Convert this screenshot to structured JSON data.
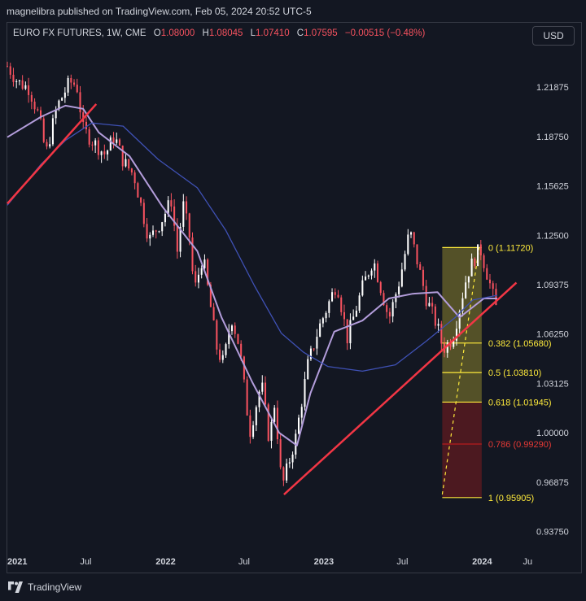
{
  "publish_line": "magnelibra published on TradingView.com, Feb 05, 2024 20:52 UTC-5",
  "legend": {
    "symbol": "EURO FX FUTURES, 1W, CME",
    "open_label": "O",
    "open": "1.08000",
    "high_label": "H",
    "high": "1.08045",
    "low_label": "L",
    "low": "1.07410",
    "close_label": "C",
    "close": "1.07595",
    "change": "−0.00515 (−0.48%)"
  },
  "currency_button": "USD",
  "footer": {
    "brand": "TradingView",
    "logo_icon": "tradingview-logo-icon"
  },
  "colors": {
    "background": "#131722",
    "up": "#ffffff",
    "down": "#f7525f",
    "trendline": "#f23645",
    "ma_fast": "#b39ddb",
    "ma_slow": "#3f51b5",
    "fib_yellow": "#ffeb3b",
    "fib_red": "#b71c1c",
    "axis_text": "#d1d4dc"
  },
  "chart_data": {
    "type": "candlestick",
    "instrument": "EURO FX FUTURES",
    "interval": "1W",
    "exchange": "CME",
    "y_axis": {
      "range": [
        0.925,
        1.245
      ],
      "ticks": [
        "1.21875",
        "1.18750",
        "1.15625",
        "1.12500",
        "1.09375",
        "1.06250",
        "1.03125",
        "1.00000",
        "0.96875",
        "0.93750"
      ]
    },
    "x_axis": {
      "range": [
        "2021-01-01",
        "2024-04-20"
      ],
      "ticks": [
        {
          "label": "2021",
          "date": "2021-01-01"
        },
        {
          "label": "Jul",
          "date": "2021-07-01"
        },
        {
          "label": "2022",
          "date": "2022-01-01"
        },
        {
          "label": "Jul",
          "date": "2022-07-01"
        },
        {
          "label": "2023",
          "date": "2023-01-01"
        },
        {
          "label": "Jul",
          "date": "2023-07-01"
        },
        {
          "label": "2024",
          "date": "2024-01-01"
        },
        {
          "label": "Ju",
          "date": "2024-04-15"
        }
      ]
    },
    "price_path": [
      [
        "2021-01-01",
        1.232
      ],
      [
        "2021-01-25",
        1.222
      ],
      [
        "2021-02-20",
        1.218
      ],
      [
        "2021-03-15",
        1.2
      ],
      [
        "2021-03-31",
        1.176
      ],
      [
        "2021-04-25",
        1.206
      ],
      [
        "2021-05-25",
        1.222
      ],
      [
        "2021-06-10",
        1.22
      ],
      [
        "2021-06-25",
        1.192
      ],
      [
        "2021-07-15",
        1.185
      ],
      [
        "2021-08-15",
        1.176
      ],
      [
        "2021-09-05",
        1.188
      ],
      [
        "2021-09-25",
        1.172
      ],
      [
        "2021-10-20",
        1.163
      ],
      [
        "2021-11-24",
        1.122
      ],
      [
        "2021-12-20",
        1.133
      ],
      [
        "2022-01-14",
        1.147
      ],
      [
        "2022-01-28",
        1.115
      ],
      [
        "2022-02-10",
        1.145
      ],
      [
        "2022-02-28",
        1.12
      ],
      [
        "2022-03-07",
        1.088
      ],
      [
        "2022-03-28",
        1.112
      ],
      [
        "2022-04-30",
        1.052
      ],
      [
        "2022-05-15",
        1.044
      ],
      [
        "2022-06-01",
        1.074
      ],
      [
        "2022-06-20",
        1.055
      ],
      [
        "2022-07-14",
        1.0
      ],
      [
        "2022-08-10",
        1.032
      ],
      [
        "2022-08-28",
        0.995
      ],
      [
        "2022-09-10",
        1.02
      ],
      [
        "2022-09-26",
        0.965
      ],
      [
        "2022-10-28",
        0.997
      ],
      [
        "2022-11-25",
        1.043
      ],
      [
        "2022-12-20",
        1.066
      ],
      [
        "2023-01-31",
        1.095
      ],
      [
        "2023-02-24",
        1.06
      ],
      [
        "2023-03-31",
        1.092
      ],
      [
        "2023-04-25",
        1.11
      ],
      [
        "2023-05-31",
        1.072
      ],
      [
        "2023-06-25",
        1.097
      ],
      [
        "2023-07-18",
        1.128
      ],
      [
        "2023-08-25",
        1.085
      ],
      [
        "2023-09-20",
        1.067
      ],
      [
        "2023-10-03",
        1.053
      ],
      [
        "2023-10-25",
        1.06
      ],
      [
        "2023-11-28",
        1.101
      ],
      [
        "2023-12-27",
        1.117
      ],
      [
        "2024-01-20",
        1.093
      ],
      [
        "2024-02-05",
        1.076
      ]
    ],
    "moving_averages": [
      {
        "points": [
          [
            "2021-01-01",
            1.187
          ],
          [
            "2021-03-20",
            1.2
          ],
          [
            "2021-05-15",
            1.207
          ],
          [
            "2021-06-25",
            1.205
          ],
          [
            "2021-07-31",
            1.19
          ],
          [
            "2021-10-10",
            1.175
          ],
          [
            "2021-12-25",
            1.143
          ],
          [
            "2022-03-15",
            1.115
          ],
          [
            "2022-05-10",
            1.073
          ],
          [
            "2022-07-20",
            1.032
          ],
          [
            "2022-09-20",
            1.0
          ],
          [
            "2022-10-31",
            0.992
          ],
          [
            "2022-12-01",
            1.025
          ],
          [
            "2023-01-25",
            1.064
          ],
          [
            "2023-03-31",
            1.071
          ],
          [
            "2023-05-31",
            1.085
          ],
          [
            "2023-07-25",
            1.088
          ],
          [
            "2023-09-20",
            1.089
          ],
          [
            "2023-11-10",
            1.073
          ],
          [
            "2024-01-05",
            1.085
          ],
          [
            "2024-02-05",
            1.085
          ]
        ]
      },
      {
        "points": [
          [
            "2021-01-01",
            1.144
          ],
          [
            "2021-03-20",
            1.17
          ],
          [
            "2021-05-15",
            1.185
          ],
          [
            "2021-07-15",
            1.196
          ],
          [
            "2021-09-25",
            1.194
          ],
          [
            "2021-12-15",
            1.173
          ],
          [
            "2022-03-15",
            1.155
          ],
          [
            "2022-05-20",
            1.128
          ],
          [
            "2022-07-25",
            1.093
          ],
          [
            "2022-09-25",
            1.063
          ],
          [
            "2022-11-15",
            1.051
          ],
          [
            "2023-01-10",
            1.042
          ],
          [
            "2023-03-31",
            1.039
          ],
          [
            "2023-06-15",
            1.043
          ],
          [
            "2023-08-25",
            1.058
          ],
          [
            "2023-10-31",
            1.073
          ],
          [
            "2023-12-10",
            1.084
          ],
          [
            "2024-02-05",
            1.087
          ]
        ]
      }
    ],
    "trendlines": [
      {
        "from": [
          "2021-01-01",
          1.145
        ],
        "to": [
          "2021-07-25",
          1.208
        ]
      },
      {
        "from": [
          "2022-10-01",
          0.961
        ],
        "to": [
          "2024-03-20",
          1.095
        ]
      }
    ],
    "fibonacci": {
      "date_range": [
        "2023-10-01",
        "2023-12-31"
      ],
      "trend_line": {
        "from": [
          "2023-10-01",
          0.961
        ],
        "to": [
          "2023-12-25",
          1.117
        ]
      },
      "levels": [
        {
          "ratio": "0",
          "price": 1.1172,
          "label": "0 (1.11720)"
        },
        {
          "ratio": "0.382",
          "price": 1.0568,
          "label": "0.382 (1.05680)"
        },
        {
          "ratio": "0.5",
          "price": 1.0381,
          "label": "0.5 (1.03810)"
        },
        {
          "ratio": "0.618",
          "price": 1.01945,
          "label": "0.618 (1.01945)"
        },
        {
          "ratio": "0.786",
          "price": 0.9929,
          "label": "0.786 (0.99290)"
        },
        {
          "ratio": "1",
          "price": 0.95905,
          "label": "1 (0.95905)"
        }
      ]
    }
  }
}
